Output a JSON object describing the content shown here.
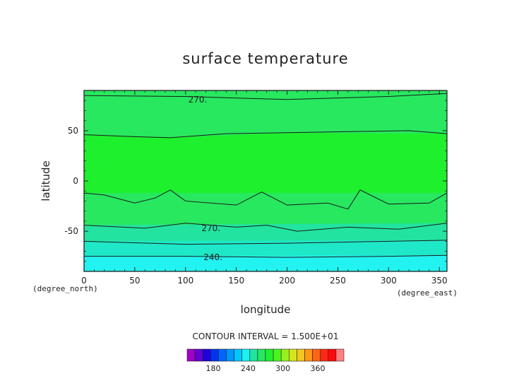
{
  "chart_data": {
    "type": "contour",
    "title": "surface temperature",
    "xlabel": "longitude",
    "ylabel": "latitude",
    "x_unit": "(degree_east)",
    "y_unit": "(degree_north)",
    "xlim": [
      0,
      357.5
    ],
    "ylim": [
      -90,
      90
    ],
    "x_ticks": [
      0,
      50,
      100,
      150,
      200,
      250,
      300,
      350
    ],
    "y_ticks": [
      -50,
      0,
      50
    ],
    "contour_interval_text": "CONTOUR INTERVAL = 1.500E+01",
    "contour_labels": [
      {
        "text": "270.",
        "lon": 112,
        "lat": 81
      },
      {
        "text": "270.",
        "lon": 125,
        "lat": -47
      },
      {
        "text": "240.",
        "lon": 127,
        "lat": -76
      }
    ],
    "bands": [
      {
        "level": [
          270,
          285
        ],
        "color": "#28e860",
        "upper_lat": [
          [
            0,
            85
          ],
          [
            100,
            84
          ],
          [
            200,
            81
          ],
          [
            300,
            84
          ],
          [
            357.5,
            87
          ]
        ],
        "lower_lat": [
          [
            0,
            46
          ],
          [
            50,
            44
          ],
          [
            85,
            43
          ],
          [
            140,
            47
          ],
          [
            200,
            48
          ],
          [
            260,
            49
          ],
          [
            320,
            50
          ],
          [
            357.5,
            47
          ]
        ]
      },
      {
        "level": [
          285,
          300
        ],
        "color": "#1ef02e",
        "upper_lat": [
          [
            0,
            46
          ],
          [
            85,
            43
          ],
          [
            200,
            48
          ],
          [
            357.5,
            47
          ]
        ],
        "lower_lat": [
          [
            0,
            -12
          ],
          [
            20,
            -14
          ],
          [
            50,
            -22
          ],
          [
            70,
            -17
          ],
          [
            85,
            -9
          ],
          [
            100,
            -20
          ],
          [
            150,
            -24
          ],
          [
            175,
            -11
          ],
          [
            200,
            -24
          ],
          [
            240,
            -22
          ],
          [
            260,
            -28
          ],
          [
            272,
            -9
          ],
          [
            300,
            -23
          ],
          [
            340,
            -22
          ],
          [
            357.5,
            -12
          ]
        ]
      },
      {
        "level": [
          270,
          285
        ],
        "color": "#28e860",
        "upper_lat": [
          [
            0,
            -12
          ],
          [
            357.5,
            -12
          ]
        ],
        "lower_lat": [
          [
            0,
            -44
          ],
          [
            60,
            -47
          ],
          [
            100,
            -42
          ],
          [
            150,
            -46
          ],
          [
            180,
            -44
          ],
          [
            210,
            -50
          ],
          [
            260,
            -46
          ],
          [
            310,
            -48
          ],
          [
            357.5,
            -42
          ]
        ]
      },
      {
        "level": [
          255,
          270
        ],
        "color": "#22e4a0",
        "upper_lat": [
          [
            0,
            -44
          ],
          [
            357.5,
            -42
          ]
        ],
        "lower_lat": [
          [
            0,
            -60
          ],
          [
            100,
            -63
          ],
          [
            200,
            -62
          ],
          [
            300,
            -60
          ],
          [
            357.5,
            -59
          ]
        ]
      },
      {
        "level": [
          240,
          255
        ],
        "color": "#1fe8c8",
        "upper_lat": [
          [
            0,
            -60
          ],
          [
            357.5,
            -59
          ]
        ],
        "lower_lat": [
          [
            0,
            -75
          ],
          [
            100,
            -75
          ],
          [
            200,
            -76
          ],
          [
            300,
            -75
          ],
          [
            357.5,
            -74
          ]
        ]
      },
      {
        "level": [
          225,
          240
        ],
        "color": "#22f2f0",
        "upper_lat": [
          [
            0,
            -75
          ],
          [
            357.5,
            -74
          ]
        ],
        "lower_lat": [
          [
            0,
            -90
          ],
          [
            357.5,
            -90
          ]
        ]
      }
    ],
    "colorbar": {
      "colors": [
        "#a000c8",
        "#6400d2",
        "#1e00dc",
        "#0032f0",
        "#0064ff",
        "#0096ff",
        "#00c8ff",
        "#1ef0f0",
        "#20e4a0",
        "#28e860",
        "#1ef02e",
        "#4cf41e",
        "#96f01e",
        "#d2e61e",
        "#f0c81e",
        "#ff9614",
        "#ff6414",
        "#ff2814",
        "#ff0a0a",
        "#ff8080"
      ],
      "ticks": [
        "180",
        "240",
        "300",
        "360"
      ],
      "tick_values": [
        180,
        240,
        300,
        360
      ],
      "range": [
        135,
        405
      ]
    }
  }
}
